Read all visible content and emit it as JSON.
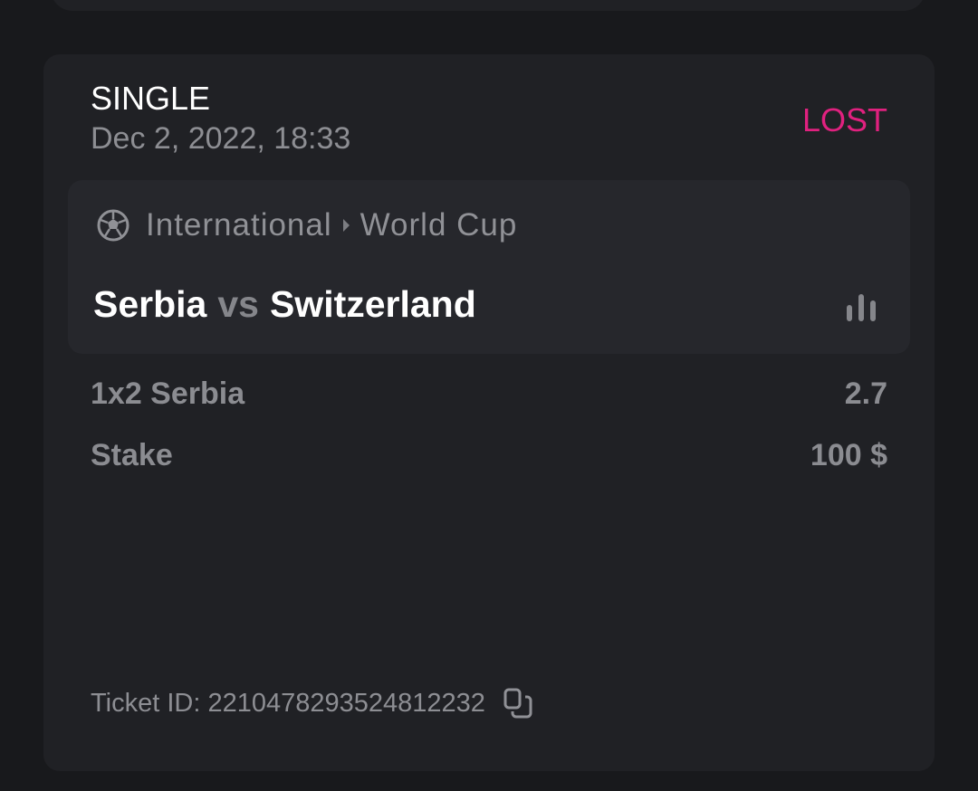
{
  "bet": {
    "type": "SINGLE",
    "date": "Dec 2, 2022, 18:33",
    "status": "LOST",
    "status_color": "#e0217f",
    "event": {
      "sport_icon": "soccer-ball-icon",
      "category": "International",
      "league": "World Cup",
      "home": "Serbia",
      "vs": "vs",
      "away": "Switzerland",
      "stats_icon": "bar-chart-icon"
    },
    "selection": {
      "label": "1x2 Serbia",
      "odds": "2.7"
    },
    "stake": {
      "label": "Stake",
      "value": "100 $"
    },
    "ticket": {
      "label": "Ticket ID:",
      "id": "2210478293524812232",
      "copy_icon": "copy-icon"
    }
  }
}
